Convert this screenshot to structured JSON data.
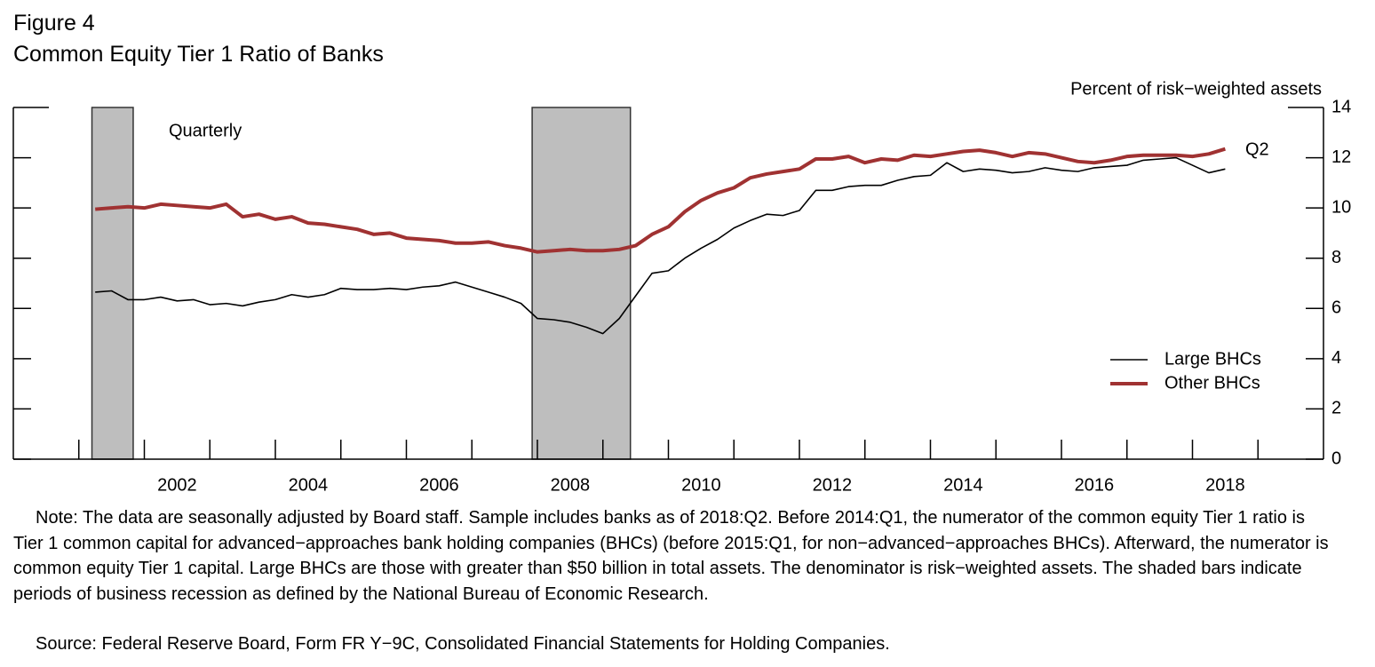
{
  "chart_data": {
    "type": "line",
    "figure_label": "Figure 4",
    "title": "Common Equity Tier 1 Ratio of Banks",
    "y_axis_label": "Percent of risk−weighted assets",
    "annotations": {
      "frequency": "Quarterly",
      "last_point": "Q2"
    },
    "note": "Note: The data are seasonally adjusted by Board staff. Sample includes banks as of 2018:Q2.  Before 2014:Q1, the numerator of the common equity Tier 1 ratio is Tier 1 common capital for advanced−approaches bank holding companies (BHCs) (before 2015:Q1, for non−advanced−approaches BHCs).  Afterward, the numerator is common equity Tier 1 capital. Large BHCs are those with greater than $50 billion in total assets. The denominator is risk−weighted assets. The shaded bars indicate periods of business recession as defined by the National Bureau of Economic Research.",
    "source": "Source:  Federal Reserve Board, Form FR Y−9C, Consolidated Financial Statements for Holding Companies.",
    "xlim": [
      2000,
      2020
    ],
    "xticks": [
      2002,
      2004,
      2006,
      2008,
      2010,
      2012,
      2014,
      2016,
      2018
    ],
    "xminor_ticks": [
      2001,
      2003,
      2005,
      2007,
      2009,
      2011,
      2013,
      2015,
      2017,
      2019
    ],
    "ylim": [
      0,
      14
    ],
    "yticks": [
      0,
      2,
      4,
      6,
      8,
      10,
      12,
      14
    ],
    "recessions": [
      [
        2001.2,
        2001.83
      ],
      [
        2007.92,
        2009.42
      ]
    ],
    "recession_color": "#bebebe",
    "legend": "lower right",
    "x": [
      2001.25,
      2001.5,
      2001.75,
      2002,
      2002.25,
      2002.5,
      2002.75,
      2003,
      2003.25,
      2003.5,
      2003.75,
      2004,
      2004.25,
      2004.5,
      2004.75,
      2005,
      2005.25,
      2005.5,
      2005.75,
      2006,
      2006.25,
      2006.5,
      2006.75,
      2007,
      2007.25,
      2007.5,
      2007.75,
      2008,
      2008.25,
      2008.5,
      2008.75,
      2009,
      2009.25,
      2009.5,
      2009.75,
      2010,
      2010.25,
      2010.5,
      2010.75,
      2011,
      2011.25,
      2011.5,
      2011.75,
      2012,
      2012.25,
      2012.5,
      2012.75,
      2013,
      2013.25,
      2013.5,
      2013.75,
      2014,
      2014.25,
      2014.5,
      2014.75,
      2015,
      2015.25,
      2015.5,
      2015.75,
      2016,
      2016.25,
      2016.5,
      2016.75,
      2017,
      2017.25,
      2017.5,
      2017.75,
      2018,
      2018.25,
      2018.5
    ],
    "series": [
      {
        "name": "Large BHCs",
        "color": "#000000",
        "width": 1.6,
        "values": [
          6.65,
          6.7,
          6.35,
          6.35,
          6.45,
          6.3,
          6.35,
          6.15,
          6.2,
          6.1,
          6.25,
          6.35,
          6.55,
          6.45,
          6.55,
          6.8,
          6.75,
          6.75,
          6.8,
          6.75,
          6.85,
          6.9,
          7.05,
          6.85,
          6.65,
          6.45,
          6.2,
          5.6,
          5.55,
          5.45,
          5.25,
          5.0,
          5.6,
          6.5,
          7.4,
          7.5,
          8.0,
          8.4,
          8.75,
          9.2,
          9.5,
          9.75,
          9.7,
          9.9,
          10.7,
          10.7,
          10.85,
          10.9,
          10.9,
          11.1,
          11.25,
          11.3,
          11.8,
          11.45,
          11.55,
          11.5,
          11.4,
          11.45,
          11.6,
          11.5,
          11.45,
          11.6,
          11.65,
          11.7,
          11.9,
          11.95,
          12.0,
          11.7,
          11.4,
          11.55
        ]
      },
      {
        "name": "Other BHCs",
        "color": "#a03232",
        "width": 4,
        "values": [
          9.95,
          10.0,
          10.05,
          10.0,
          10.15,
          10.1,
          10.05,
          10.0,
          10.15,
          9.65,
          9.75,
          9.55,
          9.65,
          9.4,
          9.35,
          9.25,
          9.15,
          8.95,
          9.0,
          8.8,
          8.75,
          8.7,
          8.6,
          8.6,
          8.65,
          8.5,
          8.4,
          8.25,
          8.3,
          8.35,
          8.3,
          8.3,
          8.35,
          8.5,
          8.95,
          9.25,
          9.85,
          10.3,
          10.6,
          10.8,
          11.2,
          11.35,
          11.45,
          11.55,
          11.95,
          11.95,
          12.05,
          11.8,
          11.95,
          11.9,
          12.1,
          12.05,
          12.15,
          12.25,
          12.3,
          12.2,
          12.05,
          12.2,
          12.15,
          12.0,
          11.85,
          11.8,
          11.9,
          12.05,
          12.1,
          12.1,
          12.1,
          12.05,
          12.15,
          12.35
        ]
      }
    ]
  }
}
